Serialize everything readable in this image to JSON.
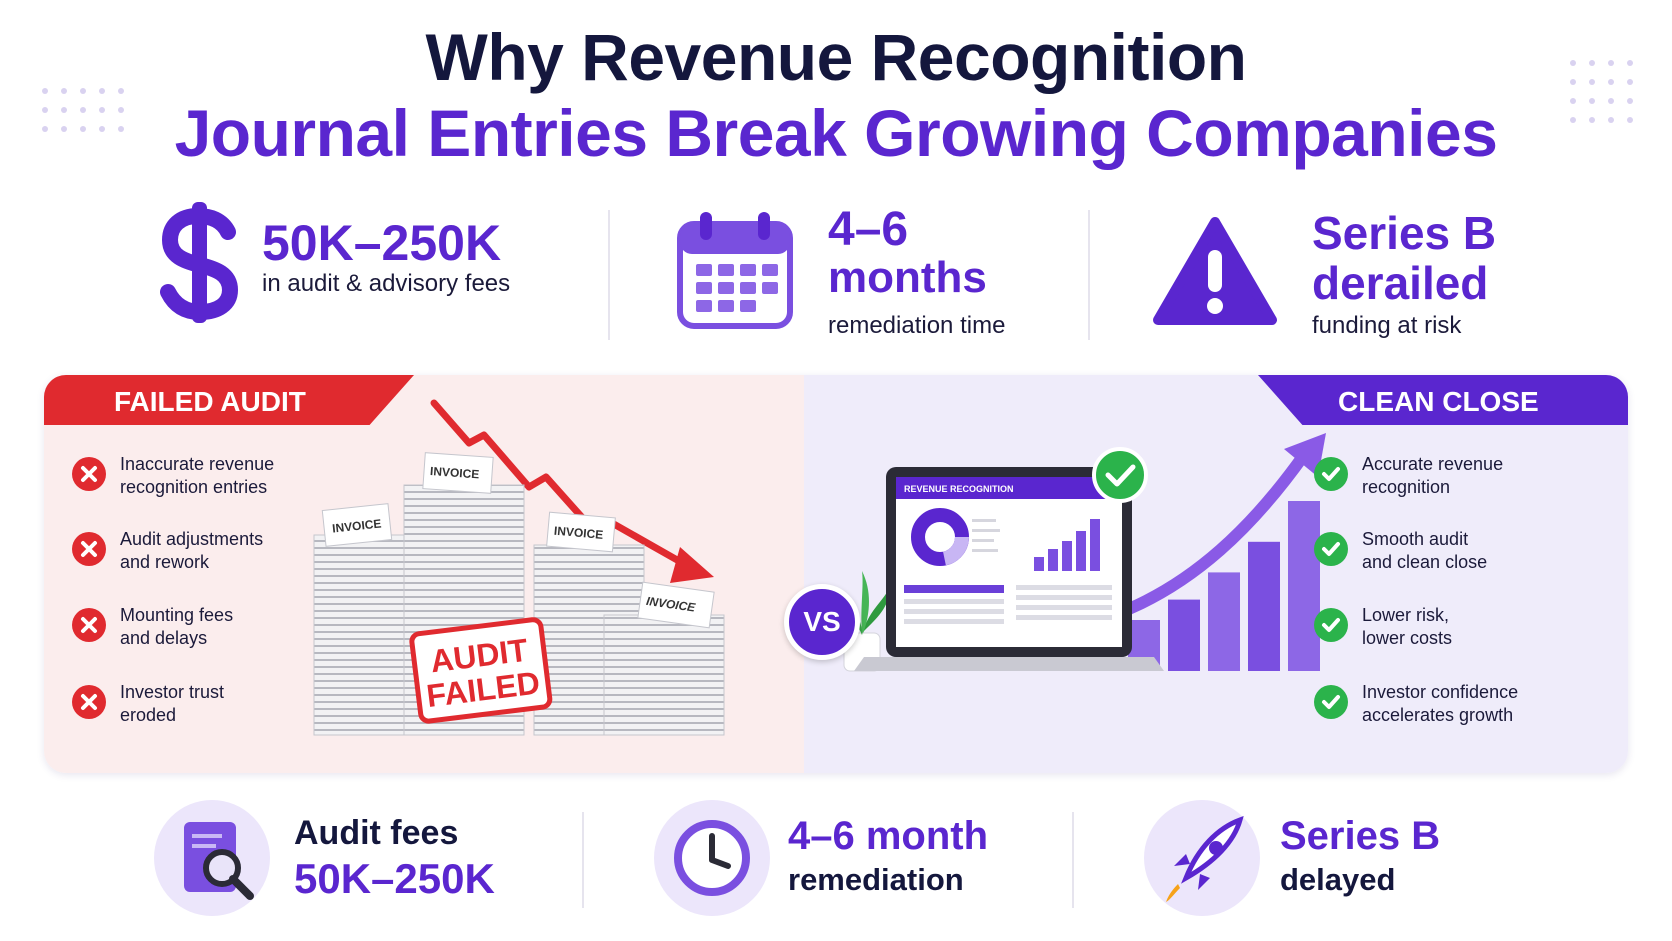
{
  "title": {
    "line1": "Why Revenue Recognition",
    "line2": "Journal Entries Break Growing Companies"
  },
  "stats": [
    {
      "icon": "dollar-icon",
      "big": "50K–250K",
      "small": "in audit & advisory fees"
    },
    {
      "icon": "calendar-icon",
      "big_line1": "4–6",
      "big_line2": "months",
      "small": "remediation time"
    },
    {
      "icon": "warning-icon",
      "big_line1": "Series B",
      "big_line2": "derailed",
      "small": "funding at risk"
    }
  ],
  "failed": {
    "label": "FAILED AUDIT",
    "items": [
      {
        "line1": "Inaccurate revenue",
        "line2": "recognition entries"
      },
      {
        "line1": "Audit adjustments",
        "line2": "and rework"
      },
      {
        "line1": "Mounting fees",
        "line2": "and delays"
      },
      {
        "line1": "Investor trust",
        "line2": "eroded"
      }
    ],
    "invoice_labels": [
      "INVOICE",
      "INVOICE",
      "INVOICE",
      "INVOICE"
    ],
    "stamp_line1": "AUDIT",
    "stamp_line2": "FAILED"
  },
  "vs_label": "VS",
  "clean": {
    "label": "CLEAN CLOSE",
    "items": [
      {
        "line1": "Accurate revenue",
        "line2": "recognition"
      },
      {
        "line1": "Smooth audit",
        "line2": "and clean close"
      },
      {
        "line1": "Lower risk,",
        "line2": "lower costs"
      },
      {
        "line1": "Investor confidence",
        "line2": "accelerates growth"
      }
    ],
    "laptop_header": "REVENUE RECOGNITION",
    "growth_bars": [
      0.3,
      0.42,
      0.58,
      0.76,
      1.0
    ]
  },
  "bottom": [
    {
      "icon": "audit-report-icon",
      "line1": "Audit fees",
      "line2": "50K–250K"
    },
    {
      "icon": "clock-icon",
      "line1": "4–6 month",
      "line2": "remediation"
    },
    {
      "icon": "rocket-icon",
      "line1": "Series B",
      "line2": "delayed"
    }
  ],
  "colors": {
    "purple": "#5a26cf",
    "navy": "#14173d",
    "red": "#e02a2f",
    "green": "#2bb34b"
  }
}
